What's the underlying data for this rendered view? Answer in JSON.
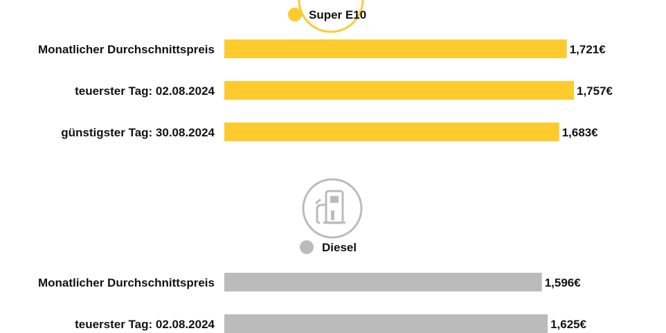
{
  "chart_data": [
    {
      "type": "bar",
      "orientation": "horizontal",
      "legend": "Super E10",
      "color": "#FDCB2E",
      "icon": "fuel-pump-icon",
      "categories": [
        "Monatlicher Durchschnittspreis",
        "teuerster Tag: 02.08.2024",
        "günstigster Tag: 30.08.2024"
      ],
      "values": [
        1.721,
        1.757,
        1.683
      ],
      "value_labels": [
        "1,721€",
        "1,757€",
        "1,683€"
      ]
    },
    {
      "type": "bar",
      "orientation": "horizontal",
      "legend": "Diesel",
      "color": "#BCBBBB",
      "icon": "fuel-pump-icon",
      "categories": [
        "Monatlicher Durchschnittspreis",
        "teuerster Tag: 02.08.2024"
      ],
      "values": [
        1.596,
        1.625
      ],
      "value_labels": [
        "1,596€",
        "1,625€"
      ]
    }
  ]
}
